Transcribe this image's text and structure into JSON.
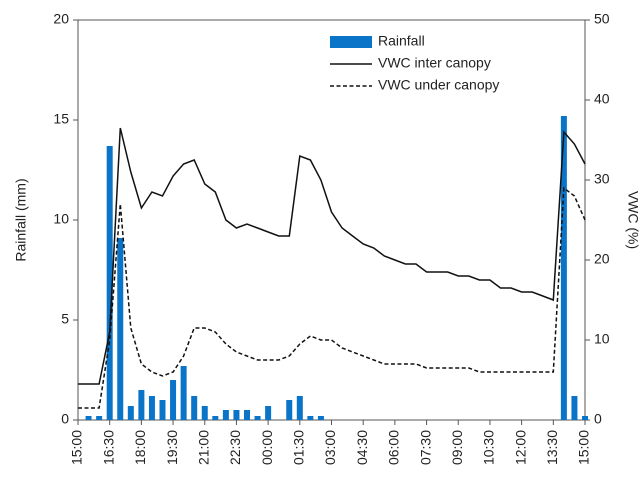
{
  "chart_data": {
    "type": "bar-line",
    "categories": [
      "15:00",
      null,
      null,
      "16:30",
      null,
      null,
      "18:00",
      null,
      null,
      "19:30",
      null,
      null,
      "21:00",
      null,
      null,
      "22:30",
      null,
      null,
      "00:00",
      null,
      null,
      "01:30",
      null,
      null,
      "03:00",
      null,
      null,
      "04:30",
      null,
      null,
      "06:00",
      null,
      null,
      "07:30",
      null,
      null,
      "09:00",
      null,
      null,
      "10:30",
      null,
      null,
      "12:00",
      null,
      null,
      "13:30",
      null,
      null,
      "15:00"
    ],
    "ylabel": "Rainfall (mm)",
    "y2label": "VWC (%)",
    "ylim": [
      0,
      20
    ],
    "yticks": [
      0,
      5,
      10,
      15,
      20
    ],
    "y2lim": [
      0,
      50
    ],
    "y2ticks": [
      0,
      10,
      20,
      30,
      40,
      50
    ],
    "legend": "top-right",
    "series": [
      {
        "name": "Rainfall",
        "type": "bar",
        "color": "#0a74c9",
        "axis": "y",
        "values": [
          0,
          0.2,
          0.2,
          13.7,
          9.1,
          0.7,
          1.5,
          1.2,
          1.0,
          2.0,
          2.7,
          1.2,
          0.7,
          0.2,
          0.5,
          0.5,
          0.5,
          0.2,
          0.7,
          0,
          1.0,
          1.2,
          0.2,
          0.2,
          0,
          0,
          0,
          0,
          0,
          0,
          0,
          0,
          0,
          0,
          0,
          0,
          0,
          0,
          0,
          0,
          0,
          0,
          0,
          0,
          0,
          0,
          15.2,
          1.2,
          0.2
        ]
      },
      {
        "name": "VWC inter canopy",
        "type": "line",
        "color": "#111111",
        "linestyle": "solid",
        "axis": "y2",
        "values": [
          4.5,
          4.5,
          4.5,
          11,
          36.5,
          31,
          26.5,
          28.5,
          28,
          30.5,
          32,
          32.5,
          29.5,
          28.5,
          25,
          24,
          24.5,
          24,
          23.5,
          23,
          23,
          33,
          32.5,
          30,
          26,
          24,
          23,
          22,
          21.5,
          20.5,
          20,
          19.5,
          19.5,
          18.5,
          18.5,
          18.5,
          18,
          18,
          17.5,
          17.5,
          16.5,
          16.5,
          16,
          16,
          15.5,
          15,
          36,
          34.5,
          32
        ]
      },
      {
        "name": "VWC under canopy",
        "type": "line",
        "color": "#111111",
        "linestyle": "dashed",
        "axis": "y2",
        "values": [
          1.5,
          1.5,
          1.5,
          10,
          27,
          11.5,
          7,
          6,
          5.5,
          6,
          8,
          11.5,
          11.5,
          11,
          9.5,
          8.5,
          8,
          7.5,
          7.5,
          7.5,
          8,
          9.5,
          10.5,
          10,
          10,
          9,
          8.5,
          8,
          7.5,
          7,
          7,
          7,
          7,
          6.5,
          6.5,
          6.5,
          6.5,
          6.5,
          6,
          6,
          6,
          6,
          6,
          6,
          6,
          6,
          29,
          28,
          25
        ]
      }
    ]
  }
}
